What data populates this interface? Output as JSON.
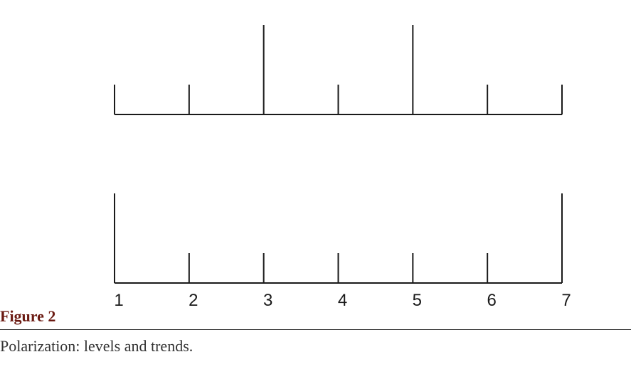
{
  "chart_data": [
    {
      "type": "bar",
      "categories": [
        1,
        2,
        3,
        4,
        5,
        6,
        7
      ],
      "values": [
        1,
        1,
        3,
        1,
        3,
        1,
        1
      ],
      "ylim": [
        0,
        3
      ]
    },
    {
      "type": "bar",
      "categories": [
        1,
        2,
        3,
        4,
        5,
        6,
        7
      ],
      "values": [
        3,
        1,
        1,
        1,
        1,
        1,
        3
      ],
      "ylim": [
        0,
        3
      ]
    }
  ],
  "figure": {
    "label": "Figure 2",
    "caption": "Polarization: levels and trends."
  },
  "colors": {
    "ink": "#1a1a1a",
    "figure_label": "#6b1a12",
    "caption": "#333333"
  }
}
